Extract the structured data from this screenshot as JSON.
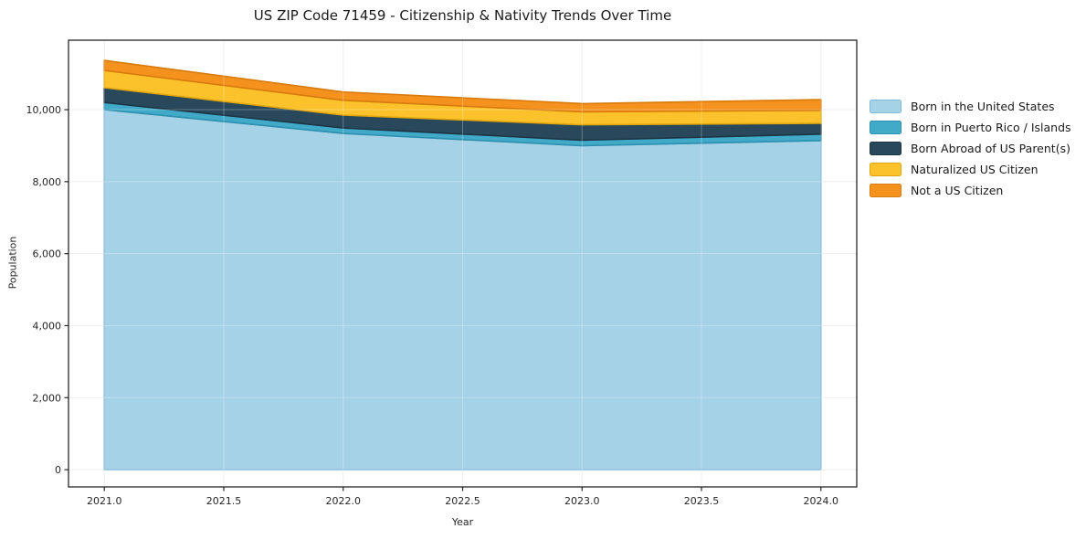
{
  "title": "US ZIP Code 71459 - Citizenship & Nativity Trends Over Time",
  "chart_data": {
    "type": "area",
    "stacked": true,
    "title": "US ZIP Code 71459 - Citizenship & Nativity Trends Over Time",
    "xlabel": "Year",
    "ylabel": "Population",
    "x": [
      2021,
      2022,
      2023,
      2024
    ],
    "series": [
      {
        "name": "Born in the United States",
        "color": "#a6d2e8",
        "edge": "#7fb9d8",
        "values": [
          10000,
          9340,
          9000,
          9140
        ]
      },
      {
        "name": "Born in Puerto Rico / Islands",
        "color": "#41aac9",
        "edge": "#2e8fae",
        "values": [
          200,
          150,
          150,
          180
        ]
      },
      {
        "name": "Born Abroad of US Parent(s)",
        "color": "#29485c",
        "edge": "#1d3646",
        "values": [
          410,
          360,
          430,
          300
        ]
      },
      {
        "name": "Naturalized US Citizen",
        "color": "#fcc22b",
        "edge": "#e2a60d",
        "values": [
          480,
          410,
          360,
          360
        ]
      },
      {
        "name": "Not a US Citizen",
        "color": "#f5921e",
        "edge": "#d87b0d",
        "values": [
          280,
          230,
          230,
          300
        ]
      }
    ],
    "totals": [
      11370,
      10490,
      10170,
      10280
    ],
    "x_tick_labels": [
      "2021.0",
      "2021.5",
      "2022.0",
      "2022.5",
      "2023.0",
      "2023.5",
      "2024.0"
    ],
    "x_tick_values": [
      2021,
      2021.5,
      2022,
      2022.5,
      2023,
      2023.5,
      2024
    ],
    "y_tick_labels": [
      "0",
      "2,000",
      "4,000",
      "6,000",
      "8,000",
      "10,000"
    ],
    "y_tick_values": [
      0,
      2000,
      4000,
      6000,
      8000,
      10000
    ],
    "xlim": [
      2020.85,
      2024.15
    ],
    "ylim": [
      -480,
      11930
    ],
    "grid": true,
    "legend_position": "right-outside",
    "colors": {
      "grid": "#e9e9e9",
      "grid_overlay": "rgba(255,255,255,0.28)",
      "axis": "#262626",
      "tick_text": "#262626",
      "background": "#ffffff"
    }
  }
}
